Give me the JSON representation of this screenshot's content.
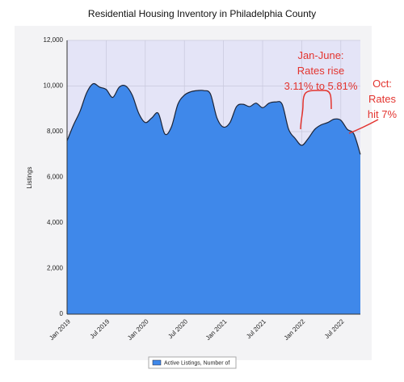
{
  "chart_data": {
    "type": "area",
    "title": "Residential Housing Inventory in Philadelphia County",
    "y_label": "Listings",
    "categories": [
      "Jan 2019",
      null,
      null,
      null,
      null,
      null,
      "Jul 2019",
      null,
      null,
      null,
      null,
      null,
      "Jan 2020",
      null,
      null,
      null,
      null,
      null,
      "Jul 2020",
      null,
      null,
      null,
      null,
      null,
      "Jan 2021",
      null,
      null,
      null,
      null,
      null,
      "Jul 2021",
      null,
      null,
      null,
      null,
      null,
      "Jan 2022",
      null,
      null,
      null,
      null,
      null,
      "Jul 2022",
      null,
      null,
      null
    ],
    "series": [
      {
        "name": "Active Listings, Number of",
        "color": "#3f88ea",
        "values": [
          7600,
          8300,
          8900,
          9700,
          10100,
          9950,
          9850,
          9500,
          9950,
          10000,
          9600,
          8800,
          8400,
          8600,
          8800,
          7900,
          8200,
          9200,
          9600,
          9750,
          9800,
          9800,
          9650,
          8600,
          8200,
          8400,
          9100,
          9200,
          9100,
          9250,
          9050,
          9250,
          9300,
          9200,
          8100,
          7700,
          7400,
          7700,
          8100,
          8300,
          8400,
          8550,
          8500,
          8100,
          7900,
          7000
        ]
      }
    ],
    "ylim": [
      0,
      12000
    ],
    "yticks": [
      {
        "value": 0,
        "label": "0"
      },
      {
        "value": 2000,
        "label": "2,000"
      },
      {
        "value": 4000,
        "label": "4,000"
      },
      {
        "value": 6000,
        "label": "6,000"
      },
      {
        "value": 8000,
        "label": "8,000"
      },
      {
        "value": 10000,
        "label": "10,000"
      },
      {
        "value": 12000,
        "label": "12,000"
      }
    ],
    "grid": true,
    "annotations": [
      {
        "lines": [
          "Jan-June:",
          "Rates rise",
          "3.11% to 5.81%"
        ]
      },
      {
        "lines": [
          "Oct:",
          "Rates",
          "hit 7%"
        ]
      }
    ]
  }
}
